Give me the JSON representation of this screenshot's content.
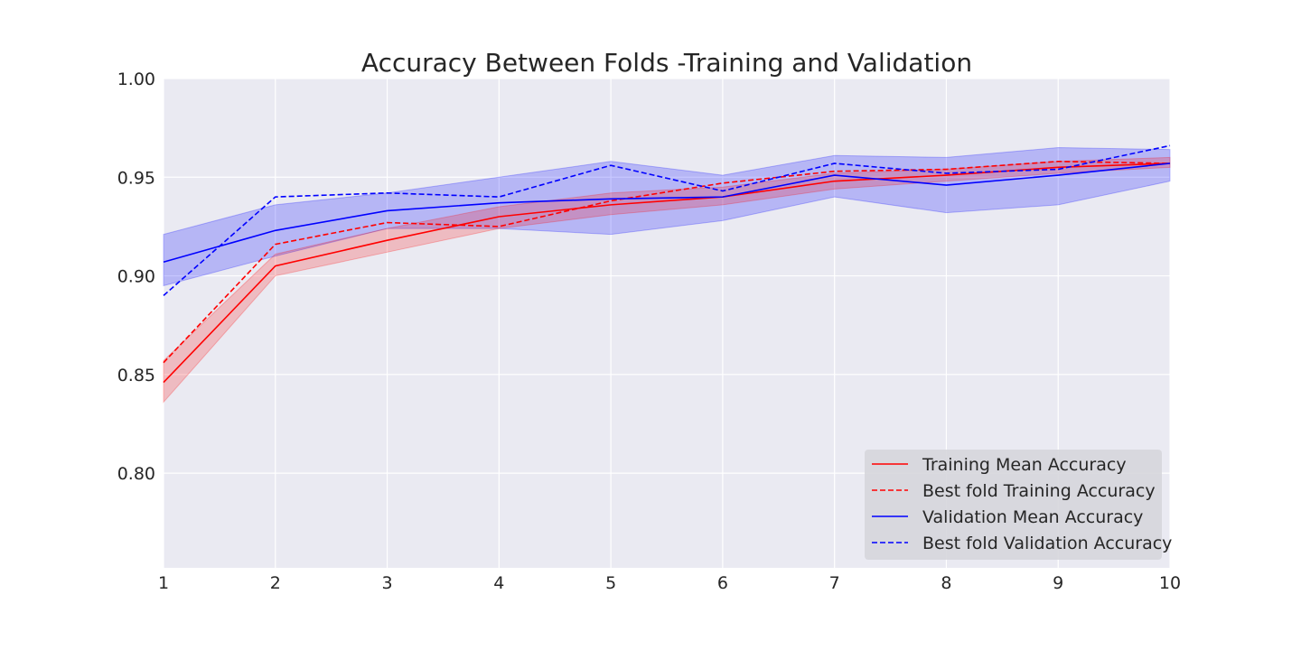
{
  "chart_data": {
    "type": "line",
    "title": "Accuracy Between Folds -Training and Validation",
    "xlabel": "",
    "ylabel": "",
    "xlim": [
      1,
      10
    ],
    "ylim": [
      0.752,
      1.0
    ],
    "x": [
      1,
      2,
      3,
      4,
      5,
      6,
      7,
      8,
      9,
      10
    ],
    "x_ticks": [
      "1",
      "2",
      "3",
      "4",
      "5",
      "6",
      "7",
      "8",
      "9",
      "10"
    ],
    "y_ticks": [
      0.8,
      0.85,
      0.9,
      0.95,
      1.0
    ],
    "y_tick_labels": [
      "0.80",
      "0.85",
      "0.90",
      "0.95",
      "1.00"
    ],
    "grid": true,
    "background": "#eaeaf2",
    "legend_position": "lower-right",
    "series": [
      {
        "name": "Training Mean Accuracy",
        "color": "#ff0000",
        "style": "solid",
        "values": [
          0.846,
          0.905,
          0.918,
          0.93,
          0.936,
          0.94,
          0.948,
          0.951,
          0.955,
          0.957
        ],
        "band_lower": [
          0.836,
          0.9,
          0.912,
          0.924,
          0.931,
          0.936,
          0.944,
          0.948,
          0.952,
          0.955
        ],
        "band_upper": [
          0.857,
          0.911,
          0.924,
          0.935,
          0.942,
          0.945,
          0.952,
          0.954,
          0.958,
          0.96
        ]
      },
      {
        "name": "Best fold Training Accuracy",
        "color": "#ff0000",
        "style": "dashed",
        "values": [
          0.856,
          0.916,
          0.927,
          0.925,
          0.938,
          0.947,
          0.953,
          0.954,
          0.958,
          0.957
        ]
      },
      {
        "name": "Validation Mean Accuracy",
        "color": "#0000ff",
        "style": "solid",
        "values": [
          0.907,
          0.923,
          0.933,
          0.937,
          0.939,
          0.94,
          0.951,
          0.946,
          0.951,
          0.957
        ],
        "band_lower": [
          0.895,
          0.91,
          0.924,
          0.924,
          0.921,
          0.928,
          0.94,
          0.932,
          0.936,
          0.948
        ],
        "band_upper": [
          0.921,
          0.936,
          0.942,
          0.95,
          0.958,
          0.951,
          0.961,
          0.96,
          0.965,
          0.964
        ]
      },
      {
        "name": "Best fold Validation Accuracy",
        "color": "#0000ff",
        "style": "dashed",
        "values": [
          0.89,
          0.94,
          0.942,
          0.94,
          0.956,
          0.943,
          0.957,
          0.952,
          0.954,
          0.966
        ]
      }
    ]
  }
}
